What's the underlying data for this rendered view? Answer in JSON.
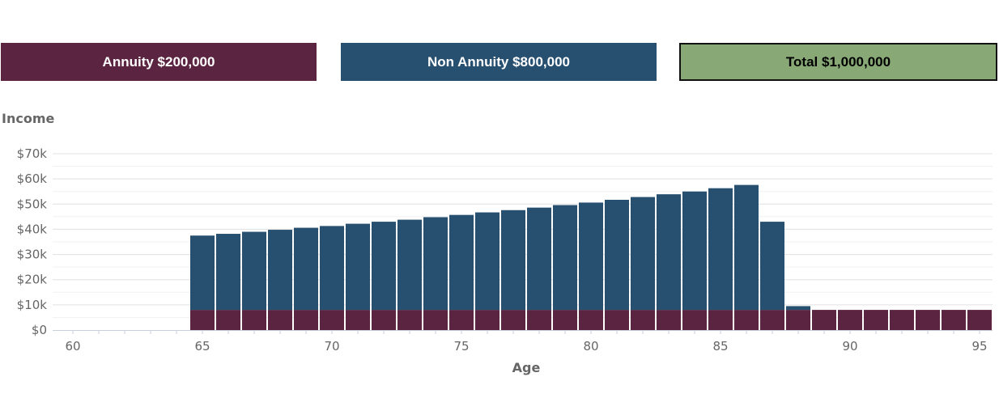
{
  "summary": {
    "annuity_label": "Annuity $200,000",
    "non_annuity_label": "Non Annuity $800,000",
    "total_label": "Total $1,000,000"
  },
  "colors": {
    "annuity": "#5b2541",
    "non_annuity": "#274f70",
    "total": "#88a876",
    "grid": "#e0e0e0",
    "text": "#666666"
  },
  "chart_data": {
    "type": "bar",
    "stacked": true,
    "ylabel": "Income",
    "xlabel": "Age",
    "ylim": [
      0,
      70000
    ],
    "xlim": [
      60,
      95
    ],
    "y_ticks": [
      "$0",
      "$10k",
      "$20k",
      "$30k",
      "$40k",
      "$50k",
      "$60k",
      "$70k"
    ],
    "x_ticks": [
      "60",
      "65",
      "70",
      "75",
      "80",
      "85",
      "90",
      "95"
    ],
    "legend": "none",
    "grid": true,
    "x": [
      60,
      61,
      62,
      63,
      64,
      65,
      66,
      67,
      68,
      69,
      70,
      71,
      72,
      73,
      74,
      75,
      76,
      77,
      78,
      79,
      80,
      81,
      82,
      83,
      84,
      85,
      86,
      87,
      88,
      89,
      90,
      91,
      92,
      93,
      94,
      95
    ],
    "series": [
      {
        "name": "Annuity",
        "values": [
          0,
          0,
          0,
          0,
          0,
          8000,
          8000,
          8000,
          8000,
          8000,
          8000,
          8000,
          8000,
          8000,
          8000,
          8000,
          8000,
          8000,
          8000,
          8000,
          8000,
          8000,
          8000,
          8000,
          8000,
          8000,
          8000,
          8000,
          8000,
          8000,
          8000,
          8000,
          8000,
          8000,
          8000,
          8000
        ]
      },
      {
        "name": "Non Annuity",
        "values": [
          0,
          0,
          0,
          0,
          0,
          29500,
          30200,
          31000,
          31800,
          32600,
          33300,
          34200,
          35000,
          35800,
          36800,
          37700,
          38700,
          39600,
          40600,
          41600,
          42600,
          43700,
          44800,
          45900,
          47000,
          48300,
          49600,
          35000,
          1500,
          0,
          0,
          0,
          0,
          0,
          0,
          0
        ]
      }
    ]
  }
}
